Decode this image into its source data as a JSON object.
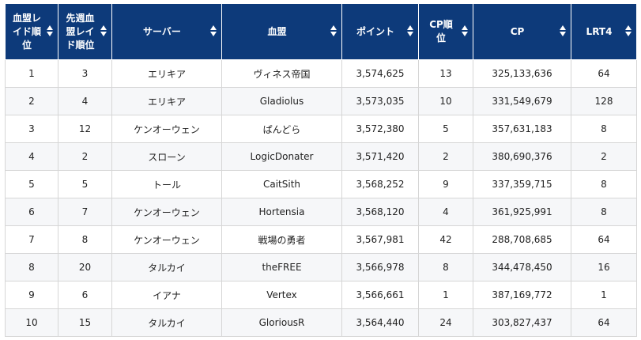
{
  "table": {
    "columns": [
      {
        "label": "血盟レイド順位"
      },
      {
        "label": "先週血盟レイド順位"
      },
      {
        "label": "サーバー"
      },
      {
        "label": "血盟"
      },
      {
        "label": "ポイント"
      },
      {
        "label": "CP順位"
      },
      {
        "label": "CP"
      },
      {
        "label": "LRT4"
      }
    ],
    "rows": [
      [
        "1",
        "3",
        "エリキア",
        "ヴィネス帝国",
        "3,574,625",
        "13",
        "325,133,636",
        "64"
      ],
      [
        "2",
        "4",
        "エリキア",
        "Gladiolus",
        "3,573,035",
        "10",
        "331,549,679",
        "128"
      ],
      [
        "3",
        "12",
        "ケンオーウェン",
        "ぱんどら",
        "3,572,380",
        "5",
        "357,631,183",
        "8"
      ],
      [
        "4",
        "2",
        "スローン",
        "LogicDonater",
        "3,571,420",
        "2",
        "380,690,376",
        "2"
      ],
      [
        "5",
        "5",
        "トール",
        "CaitSith",
        "3,568,252",
        "9",
        "337,359,715",
        "8"
      ],
      [
        "6",
        "7",
        "ケンオーウェン",
        "Hortensia",
        "3,568,120",
        "4",
        "361,925,991",
        "8"
      ],
      [
        "7",
        "8",
        "ケンオーウェン",
        "戦場の勇者",
        "3,567,981",
        "42",
        "288,708,685",
        "64"
      ],
      [
        "8",
        "20",
        "タルカイ",
        "theFREE",
        "3,566,978",
        "8",
        "344,478,450",
        "16"
      ],
      [
        "9",
        "6",
        "イアナ",
        "Vertex",
        "3,566,661",
        "1",
        "387,169,772",
        "1"
      ],
      [
        "10",
        "15",
        "タルカイ",
        "GloriousR",
        "3,564,440",
        "24",
        "303,827,437",
        "64"
      ]
    ]
  },
  "colors": {
    "header_bg": "#0d3a7a",
    "header_text": "#ffffff",
    "cell_border": "#d6d6d6"
  },
  "icons": {
    "sort": "sort-updown-icon"
  }
}
